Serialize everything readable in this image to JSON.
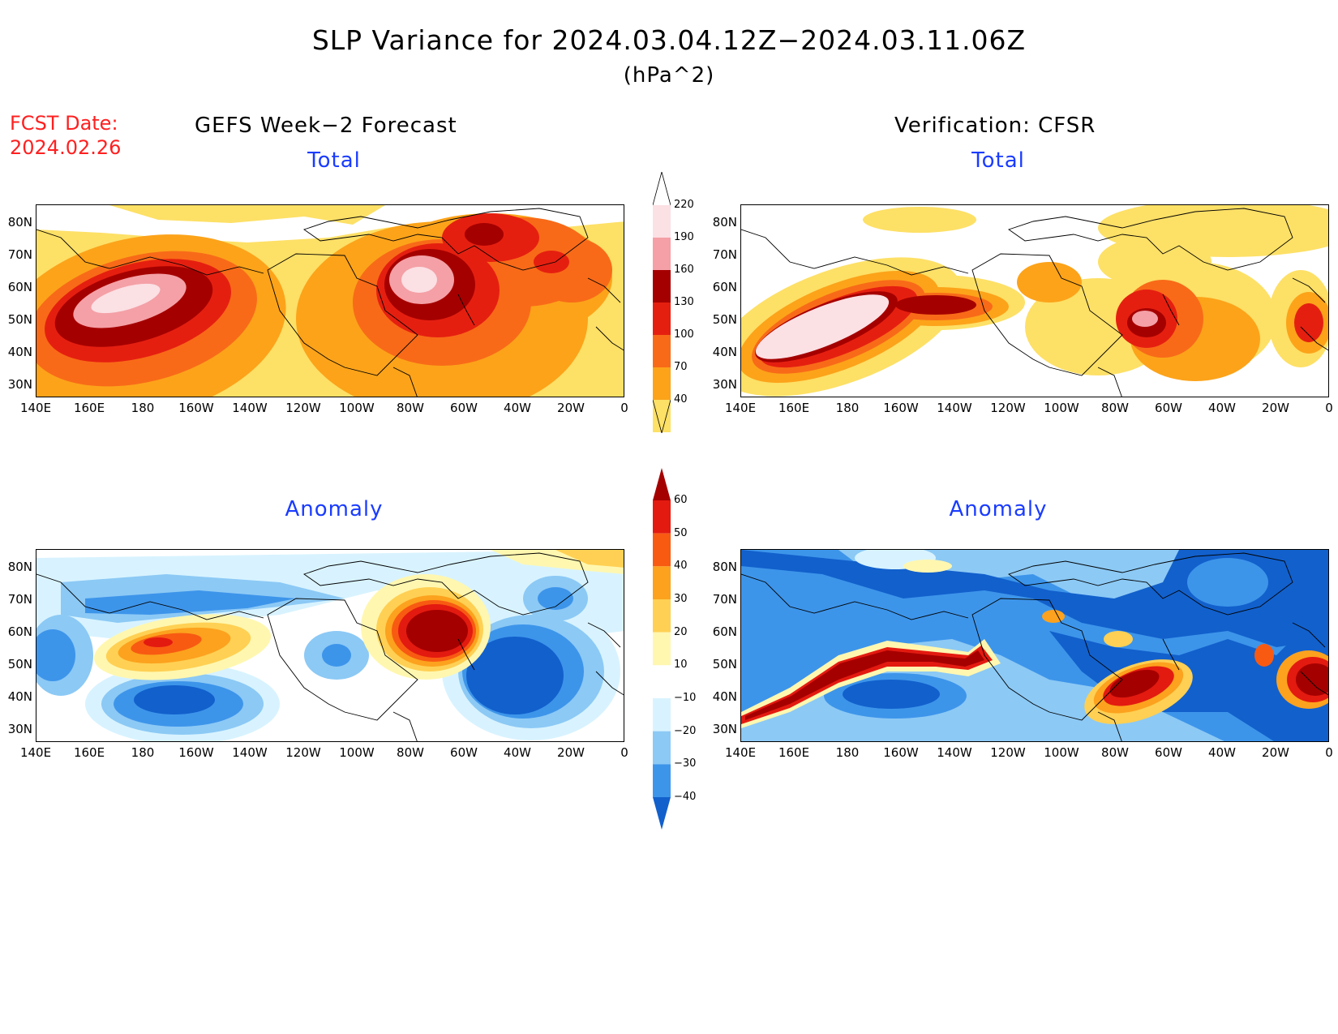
{
  "header": {
    "title": "SLP Variance for 2024.03.04.12Z−2024.03.11.06Z",
    "units": "(hPa^2)",
    "fcst_label": "FCST Date:",
    "fcst_date": "2024.02.26",
    "left_heading": "GEFS Week−2 Forecast",
    "right_heading": "Verification: CFSR"
  },
  "panels": {
    "top_left_title": "Total",
    "top_right_title": "Total",
    "bottom_left_title": "Anomaly",
    "bottom_right_title": "Anomaly"
  },
  "axes": {
    "lat_labels": [
      "80N",
      "70N",
      "60N",
      "50N",
      "40N",
      "30N"
    ],
    "lon_labels": [
      "140E",
      "160E",
      "180",
      "160W",
      "140W",
      "120W",
      "100W",
      "80W",
      "60W",
      "40W",
      "20W",
      "0"
    ]
  },
  "colorbars": {
    "total": {
      "labels": [
        "220",
        "190",
        "160",
        "130",
        "100",
        "70",
        "40"
      ],
      "colors": [
        "#fbe0e4",
        "#f4a0a6",
        "#a50000",
        "#e51f10",
        "#f86a18",
        "#fca31a",
        "#fde066"
      ]
    },
    "anomaly": {
      "labels": [
        "60",
        "50",
        "40",
        "30",
        "20",
        "10",
        "−10",
        "−20",
        "−30",
        "−40"
      ],
      "colors": [
        "#a50000",
        "#e31a10",
        "#f85a12",
        "#fca21e",
        "#ffd053",
        "#fff7b0",
        "#ffffff",
        "#d8f3ff",
        "#8cc9f5",
        "#3d95ea",
        "#1260cc"
      ]
    }
  },
  "colors": {
    "title_blue": "#1a3cff",
    "fcst_red": "#ff2020"
  }
}
